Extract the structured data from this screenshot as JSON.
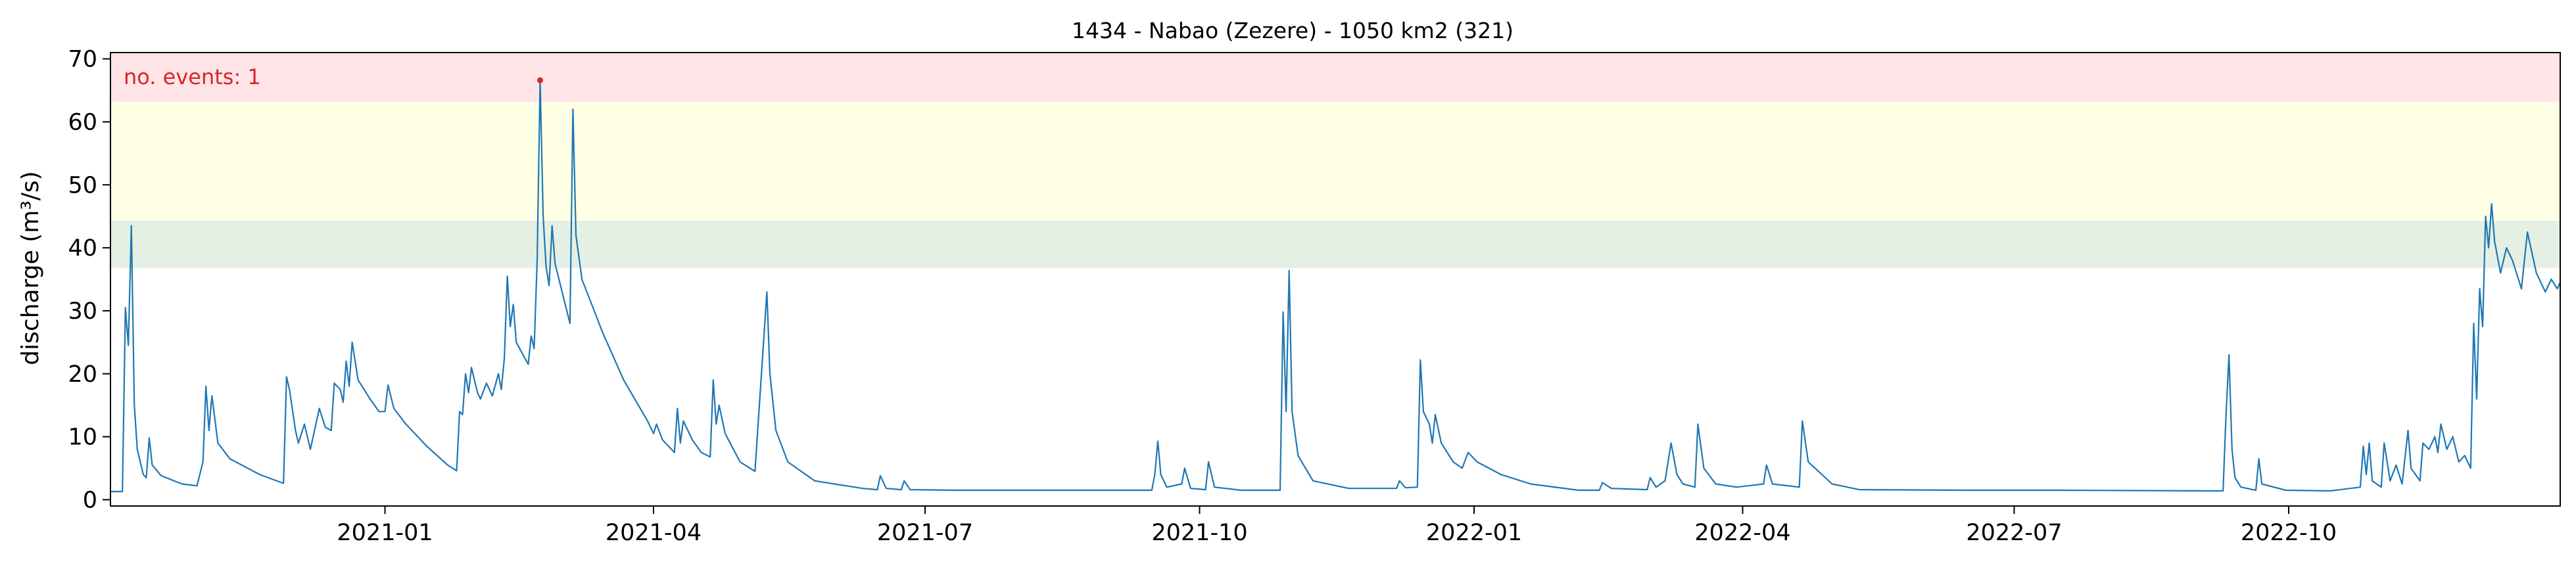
{
  "chart_data": {
    "type": "line",
    "title": "1434 - Nabao (Zezere) - 1050 km2 (321)",
    "ylabel": "discharge (m³/s)",
    "xlabel": "",
    "x_range": [
      "2020-10-01",
      "2022-12-31"
    ],
    "ylim": [
      -1,
      71
    ],
    "y_ticks": [
      0,
      10,
      20,
      30,
      40,
      50,
      60,
      70
    ],
    "x_ticks": [
      {
        "date": "2021-01-01",
        "label": "2021-01"
      },
      {
        "date": "2021-04-01",
        "label": "2021-04"
      },
      {
        "date": "2021-07-01",
        "label": "2021-07"
      },
      {
        "date": "2021-10-01",
        "label": "2021-10"
      },
      {
        "date": "2022-01-01",
        "label": "2022-01"
      },
      {
        "date": "2022-04-01",
        "label": "2022-04"
      },
      {
        "date": "2022-07-01",
        "label": "2022-07"
      },
      {
        "date": "2022-10-01",
        "label": "2022-10"
      }
    ],
    "threshold_bands": [
      {
        "from": 36.8,
        "to": 44.3,
        "color": "#e3f0e3"
      },
      {
        "from": 44.3,
        "to": 63.2,
        "color": "#feffe4"
      },
      {
        "from": 63.2,
        "to": 71,
        "color": "#ffe4e8"
      }
    ],
    "annotation": {
      "text": "no. events: 1",
      "color": "#d62728"
    },
    "events": [
      {
        "x": "2021-02-22",
        "y": 66.6
      }
    ],
    "line_color": "#1f77b4",
    "series": [
      {
        "points": [
          [
            "2020-10-01",
            1.3
          ],
          [
            "2020-10-05",
            1.3
          ],
          [
            "2020-10-06",
            30.5
          ],
          [
            "2020-10-07",
            24.5
          ],
          [
            "2020-10-08",
            43.5
          ],
          [
            "2020-10-09",
            15.0
          ],
          [
            "2020-10-10",
            8.0
          ],
          [
            "2020-10-12",
            4.0
          ],
          [
            "2020-10-13",
            3.5
          ],
          [
            "2020-10-14",
            9.8
          ],
          [
            "2020-10-15",
            5.5
          ],
          [
            "2020-10-18",
            3.8
          ],
          [
            "2020-10-25",
            2.5
          ],
          [
            "2020-10-30",
            2.2
          ],
          [
            "2020-11-01",
            6.0
          ],
          [
            "2020-11-02",
            18.0
          ],
          [
            "2020-11-03",
            11.0
          ],
          [
            "2020-11-04",
            16.5
          ],
          [
            "2020-11-06",
            9.0
          ],
          [
            "2020-11-10",
            6.5
          ],
          [
            "2020-11-20",
            4.0
          ],
          [
            "2020-11-28",
            2.6
          ],
          [
            "2020-11-29",
            19.5
          ],
          [
            "2020-11-30",
            17.5
          ],
          [
            "2020-12-02",
            11.0
          ],
          [
            "2020-12-03",
            9.0
          ],
          [
            "2020-12-05",
            12.0
          ],
          [
            "2020-12-07",
            8.0
          ],
          [
            "2020-12-10",
            14.5
          ],
          [
            "2020-12-12",
            11.5
          ],
          [
            "2020-12-14",
            11.0
          ],
          [
            "2020-12-15",
            18.5
          ],
          [
            "2020-12-17",
            17.5
          ],
          [
            "2020-12-18",
            15.5
          ],
          [
            "2020-12-19",
            22.0
          ],
          [
            "2020-12-20",
            18.0
          ],
          [
            "2020-12-21",
            25.0
          ],
          [
            "2020-12-23",
            19.0
          ],
          [
            "2020-12-27",
            16.0
          ],
          [
            "2020-12-30",
            14.0
          ],
          [
            "2021-01-01",
            14.0
          ],
          [
            "2021-01-02",
            18.2
          ],
          [
            "2021-01-04",
            14.5
          ],
          [
            "2021-01-08",
            12.0
          ],
          [
            "2021-01-15",
            8.5
          ],
          [
            "2021-01-22",
            5.5
          ],
          [
            "2021-01-25",
            4.6
          ],
          [
            "2021-01-26",
            14.0
          ],
          [
            "2021-01-27",
            13.5
          ],
          [
            "2021-01-28",
            20.0
          ],
          [
            "2021-01-29",
            17.0
          ],
          [
            "2021-01-30",
            21.0
          ],
          [
            "2021-02-01",
            17.0
          ],
          [
            "2021-02-02",
            16.0
          ],
          [
            "2021-02-04",
            18.5
          ],
          [
            "2021-02-06",
            16.5
          ],
          [
            "2021-02-08",
            20.0
          ],
          [
            "2021-02-09",
            17.5
          ],
          [
            "2021-02-10",
            22.5
          ],
          [
            "2021-02-11",
            35.5
          ],
          [
            "2021-02-12",
            27.5
          ],
          [
            "2021-02-13",
            31.0
          ],
          [
            "2021-02-14",
            25.0
          ],
          [
            "2021-02-18",
            21.5
          ],
          [
            "2021-02-19",
            26.0
          ],
          [
            "2021-02-20",
            24.0
          ],
          [
            "2021-02-21",
            38.0
          ],
          [
            "2021-02-22",
            66.6
          ],
          [
            "2021-02-23",
            45.0
          ],
          [
            "2021-02-24",
            37.0
          ],
          [
            "2021-02-25",
            34.0
          ],
          [
            "2021-02-26",
            43.5
          ],
          [
            "2021-02-27",
            37.5
          ],
          [
            "2021-03-04",
            28.0
          ],
          [
            "2021-03-05",
            62.0
          ],
          [
            "2021-03-06",
            42.0
          ],
          [
            "2021-03-08",
            35.0
          ],
          [
            "2021-03-15",
            26.5
          ],
          [
            "2021-03-22",
            19.0
          ],
          [
            "2021-03-30",
            12.5
          ],
          [
            "2021-04-01",
            10.5
          ],
          [
            "2021-04-02",
            12.0
          ],
          [
            "2021-04-04",
            9.5
          ],
          [
            "2021-04-08",
            7.5
          ],
          [
            "2021-04-09",
            14.5
          ],
          [
            "2021-04-10",
            9.0
          ],
          [
            "2021-04-11",
            12.5
          ],
          [
            "2021-04-14",
            9.5
          ],
          [
            "2021-04-17",
            7.5
          ],
          [
            "2021-04-20",
            6.8
          ],
          [
            "2021-04-21",
            19.0
          ],
          [
            "2021-04-22",
            12.0
          ],
          [
            "2021-04-23",
            15.0
          ],
          [
            "2021-04-25",
            10.5
          ],
          [
            "2021-04-30",
            6.0
          ],
          [
            "2021-05-05",
            4.5
          ],
          [
            "2021-05-09",
            33.0
          ],
          [
            "2021-05-10",
            20.0
          ],
          [
            "2021-05-12",
            11.0
          ],
          [
            "2021-05-16",
            6.0
          ],
          [
            "2021-05-25",
            3.0
          ],
          [
            "2021-06-10",
            1.8
          ],
          [
            "2021-06-15",
            1.6
          ],
          [
            "2021-06-16",
            3.8
          ],
          [
            "2021-06-18",
            1.8
          ],
          [
            "2021-06-23",
            1.6
          ],
          [
            "2021-06-24",
            3.0
          ],
          [
            "2021-06-26",
            1.6
          ],
          [
            "2021-07-10",
            1.5
          ],
          [
            "2021-08-10",
            1.5
          ],
          [
            "2021-09-10",
            1.5
          ],
          [
            "2021-09-15",
            1.5
          ],
          [
            "2021-09-16",
            4.0
          ],
          [
            "2021-09-17",
            9.3
          ],
          [
            "2021-09-18",
            4.0
          ],
          [
            "2021-09-20",
            2.0
          ],
          [
            "2021-09-25",
            2.5
          ],
          [
            "2021-09-26",
            5.0
          ],
          [
            "2021-09-28",
            1.8
          ],
          [
            "2021-10-03",
            1.6
          ],
          [
            "2021-10-04",
            6.0
          ],
          [
            "2021-10-06",
            2.0
          ],
          [
            "2021-10-15",
            1.5
          ],
          [
            "2021-10-28",
            1.5
          ],
          [
            "2021-10-29",
            29.8
          ],
          [
            "2021-10-30",
            14.0
          ],
          [
            "2021-10-31",
            36.4
          ],
          [
            "2021-11-01",
            14.0
          ],
          [
            "2021-11-03",
            7.0
          ],
          [
            "2021-11-08",
            3.0
          ],
          [
            "2021-11-20",
            1.8
          ],
          [
            "2021-11-25",
            1.8
          ],
          [
            "2021-12-06",
            1.8
          ],
          [
            "2021-12-07",
            3.0
          ],
          [
            "2021-12-09",
            1.9
          ],
          [
            "2021-12-13",
            2.0
          ],
          [
            "2021-12-14",
            22.2
          ],
          [
            "2021-12-15",
            14.0
          ],
          [
            "2021-12-17",
            12.0
          ],
          [
            "2021-12-18",
            9.0
          ],
          [
            "2021-12-19",
            13.5
          ],
          [
            "2021-12-21",
            9.0
          ],
          [
            "2021-12-25",
            6.0
          ],
          [
            "2021-12-28",
            5.0
          ],
          [
            "2021-12-30",
            7.5
          ],
          [
            "2022-01-02",
            6.0
          ],
          [
            "2022-01-10",
            4.0
          ],
          [
            "2022-01-20",
            2.5
          ],
          [
            "2022-02-05",
            1.5
          ],
          [
            "2022-02-12",
            1.5
          ],
          [
            "2022-02-13",
            2.7
          ],
          [
            "2022-02-16",
            1.8
          ],
          [
            "2022-02-28",
            1.6
          ],
          [
            "2022-03-01",
            3.5
          ],
          [
            "2022-03-03",
            2.0
          ],
          [
            "2022-03-06",
            3.0
          ],
          [
            "2022-03-08",
            9.0
          ],
          [
            "2022-03-10",
            4.0
          ],
          [
            "2022-03-12",
            2.5
          ],
          [
            "2022-03-16",
            2.0
          ],
          [
            "2022-03-17",
            12.0
          ],
          [
            "2022-03-19",
            5.0
          ],
          [
            "2022-03-23",
            2.5
          ],
          [
            "2022-03-30",
            2.0
          ],
          [
            "2022-04-08",
            2.5
          ],
          [
            "2022-04-09",
            5.5
          ],
          [
            "2022-04-11",
            2.5
          ],
          [
            "2022-04-20",
            2.0
          ],
          [
            "2022-04-21",
            12.5
          ],
          [
            "2022-04-23",
            6.0
          ],
          [
            "2022-05-01",
            2.5
          ],
          [
            "2022-05-10",
            1.6
          ],
          [
            "2022-06-15",
            1.5
          ],
          [
            "2022-07-15",
            1.5
          ],
          [
            "2022-09-07",
            1.4
          ],
          [
            "2022-09-09",
            1.4
          ],
          [
            "2022-09-10",
            13.5
          ],
          [
            "2022-09-11",
            23.0
          ],
          [
            "2022-09-12",
            8.0
          ],
          [
            "2022-09-13",
            3.5
          ],
          [
            "2022-09-15",
            2.0
          ],
          [
            "2022-09-20",
            1.5
          ],
          [
            "2022-09-21",
            6.5
          ],
          [
            "2022-09-22",
            2.5
          ],
          [
            "2022-09-30",
            1.5
          ],
          [
            "2022-10-15",
            1.4
          ],
          [
            "2022-10-25",
            2.0
          ],
          [
            "2022-10-26",
            8.5
          ],
          [
            "2022-10-27",
            4.0
          ],
          [
            "2022-10-28",
            9.0
          ],
          [
            "2022-10-29",
            3.0
          ],
          [
            "2022-11-01",
            2.0
          ],
          [
            "2022-11-02",
            9.0
          ],
          [
            "2022-11-04",
            3.0
          ],
          [
            "2022-11-06",
            5.5
          ],
          [
            "2022-11-08",
            2.5
          ],
          [
            "2022-11-10",
            11.0
          ],
          [
            "2022-11-11",
            5.0
          ],
          [
            "2022-11-14",
            3.0
          ],
          [
            "2022-11-15",
            9.0
          ],
          [
            "2022-11-17",
            8.0
          ],
          [
            "2022-11-19",
            10.0
          ],
          [
            "2022-11-20",
            7.5
          ],
          [
            "2022-11-21",
            12.0
          ],
          [
            "2022-11-23",
            8.0
          ],
          [
            "2022-11-25",
            10.0
          ],
          [
            "2022-11-27",
            6.0
          ],
          [
            "2022-11-29",
            7.0
          ],
          [
            "2022-12-01",
            5.0
          ],
          [
            "2022-12-02",
            28.0
          ],
          [
            "2022-12-03",
            16.0
          ],
          [
            "2022-12-04",
            33.5
          ],
          [
            "2022-12-05",
            27.5
          ],
          [
            "2022-12-06",
            45.0
          ],
          [
            "2022-12-07",
            40.0
          ],
          [
            "2022-12-08",
            47.0
          ],
          [
            "2022-12-09",
            41.0
          ],
          [
            "2022-12-11",
            36.0
          ],
          [
            "2022-12-13",
            40.0
          ],
          [
            "2022-12-15",
            38.0
          ],
          [
            "2022-12-18",
            33.5
          ],
          [
            "2022-12-20",
            42.5
          ],
          [
            "2022-12-23",
            36.0
          ],
          [
            "2022-12-26",
            33.0
          ],
          [
            "2022-12-28",
            35.0
          ],
          [
            "2022-12-30",
            33.5
          ],
          [
            "2022-12-31",
            34.5
          ]
        ]
      }
    ]
  }
}
